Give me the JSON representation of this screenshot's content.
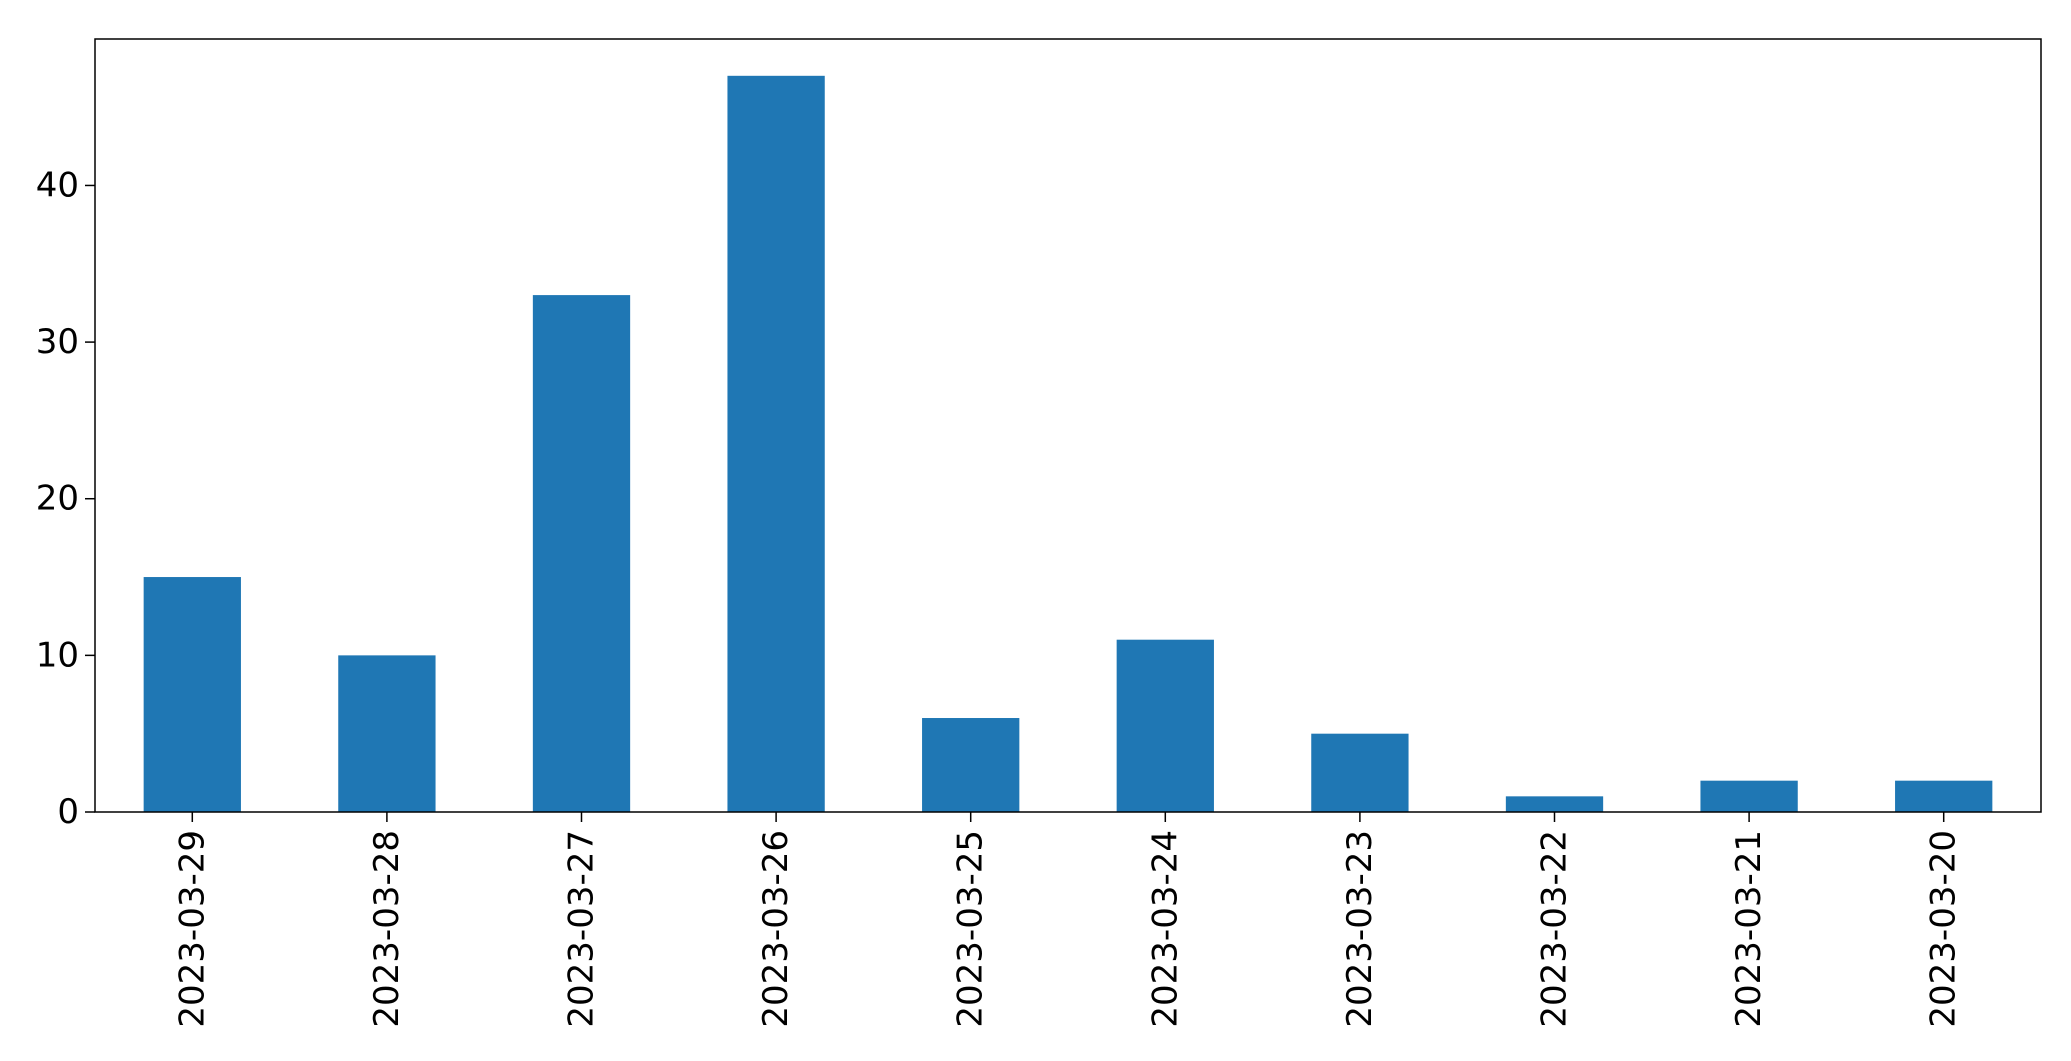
{
  "chart_data": {
    "type": "bar",
    "categories": [
      "2023-03-29",
      "2023-03-28",
      "2023-03-27",
      "2023-03-26",
      "2023-03-25",
      "2023-03-24",
      "2023-03-23",
      "2023-03-22",
      "2023-03-21",
      "2023-03-20"
    ],
    "values": [
      15,
      10,
      33,
      47,
      6,
      11,
      5,
      1,
      2,
      2
    ],
    "ylim": [
      0,
      49.35
    ],
    "yticks": [
      0,
      10,
      20,
      30,
      40
    ],
    "bar_color": "#1f77b4",
    "grid": false,
    "legend": "none"
  }
}
